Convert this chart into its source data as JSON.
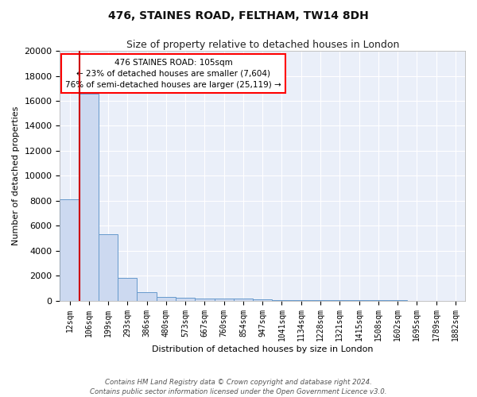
{
  "title": "476, STAINES ROAD, FELTHAM, TW14 8DH",
  "subtitle": "Size of property relative to detached houses in London",
  "xlabel": "Distribution of detached houses by size in London",
  "ylabel": "Number of detached properties",
  "bin_labels": [
    "12sqm",
    "106sqm",
    "199sqm",
    "293sqm",
    "386sqm",
    "480sqm",
    "573sqm",
    "667sqm",
    "760sqm",
    "854sqm",
    "947sqm",
    "1041sqm",
    "1134sqm",
    "1228sqm",
    "1321sqm",
    "1415sqm",
    "1508sqm",
    "1602sqm",
    "1695sqm",
    "1789sqm",
    "1882sqm"
  ],
  "bar_heights": [
    8100,
    16600,
    5300,
    1850,
    700,
    300,
    220,
    190,
    170,
    150,
    100,
    60,
    40,
    30,
    20,
    15,
    10,
    8,
    6,
    5,
    4
  ],
  "bar_color": "#ccd9f0",
  "bar_edge_color": "#6699cc",
  "vline_color": "#cc0000",
  "annotation_title": "476 STAINES ROAD: 105sqm",
  "annotation_line1": "← 23% of detached houses are smaller (7,604)",
  "annotation_line2": "76% of semi-detached houses are larger (25,119) →",
  "footer_line1": "Contains HM Land Registry data © Crown copyright and database right 2024.",
  "footer_line2": "Contains public sector information licensed under the Open Government Licence v3.0.",
  "ylim": [
    0,
    20000
  ],
  "background_color": "#eaeff9",
  "grid_color": "white"
}
